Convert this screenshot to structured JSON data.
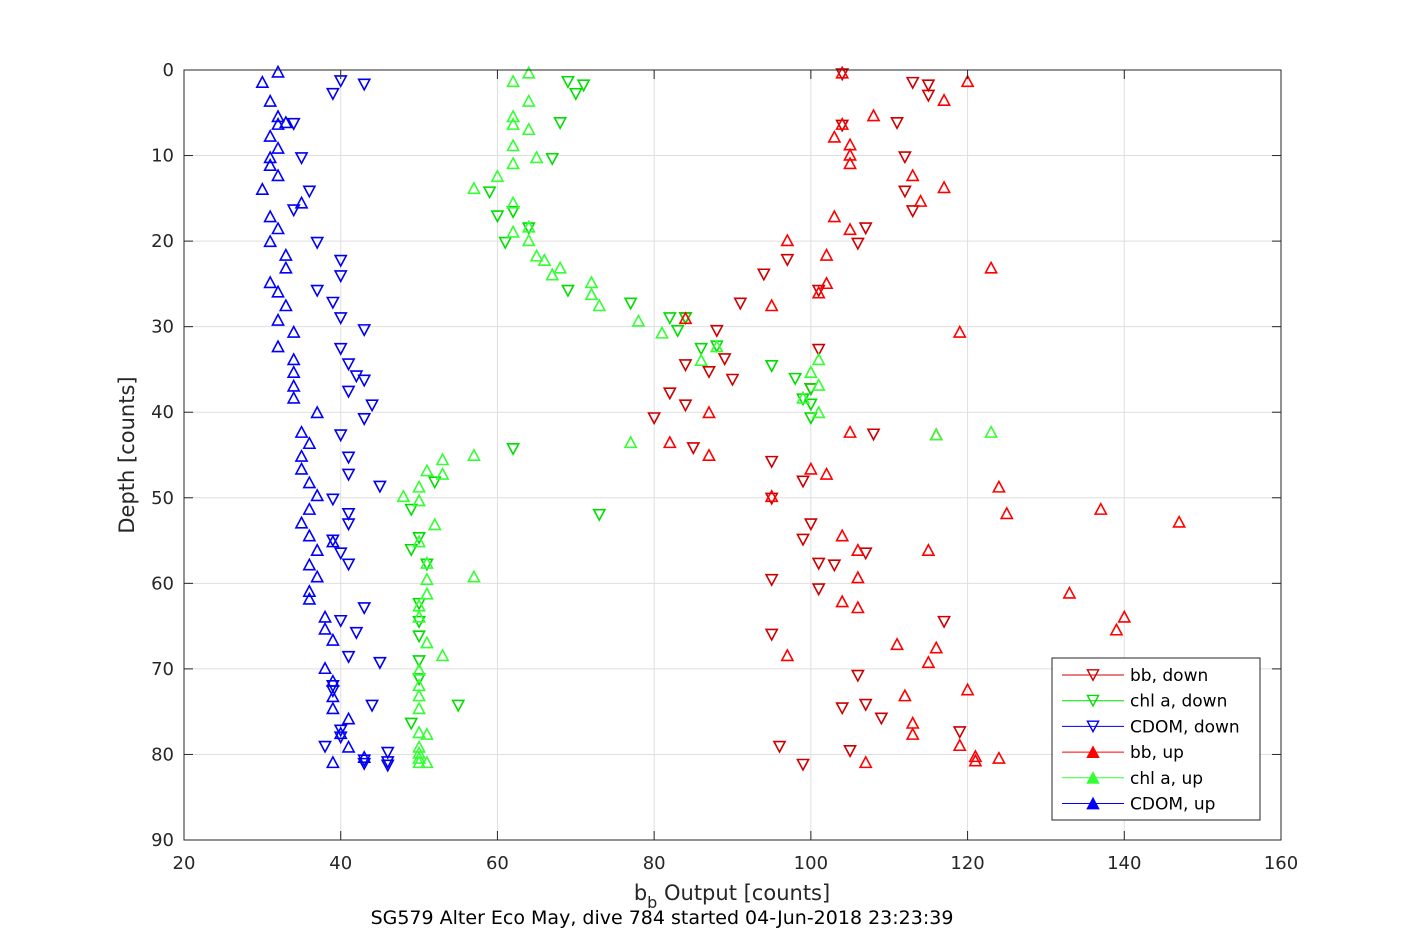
{
  "chart_data": {
    "type": "scatter",
    "xlabel": "b",
    "xlabel_subscript": "b",
    "xlabel_suffix": " Output [counts]",
    "ylabel": "Depth [counts]",
    "title": "SG579 Alter Eco May, dive 784 started 04-Jun-2018 23:23:39",
    "xlim": [
      20,
      160
    ],
    "ylim": [
      0,
      90
    ],
    "y_reversed": true,
    "grid": true,
    "legend_position": "bottom-right",
    "xticks": [
      20,
      40,
      60,
      80,
      100,
      120,
      140,
      160
    ],
    "yticks": [
      0,
      10,
      20,
      30,
      40,
      50,
      60,
      70,
      80,
      90
    ],
    "series": [
      {
        "name": "bb, down",
        "color": "#cc0000",
        "marker": "triangle-down",
        "points": [
          [
            104,
            0.5
          ],
          [
            113,
            1.5
          ],
          [
            115,
            1.8
          ],
          [
            115,
            3
          ],
          [
            111,
            6.2
          ],
          [
            104,
            6.5
          ],
          [
            112,
            10.2
          ],
          [
            112,
            14.2
          ],
          [
            113,
            16.5
          ],
          [
            107,
            18.5
          ],
          [
            106,
            20.3
          ],
          [
            97,
            22.2
          ],
          [
            94,
            23.9
          ],
          [
            101,
            25.8
          ],
          [
            91,
            27.3
          ],
          [
            88,
            30.5
          ],
          [
            84,
            29
          ],
          [
            101,
            32.7
          ],
          [
            84,
            34.5
          ],
          [
            89,
            33.8
          ],
          [
            87,
            35.3
          ],
          [
            90,
            36.2
          ],
          [
            100,
            37.3
          ],
          [
            82,
            37.8
          ],
          [
            84,
            39.2
          ],
          [
            80,
            40.7
          ],
          [
            108,
            42.6
          ],
          [
            85,
            44.2
          ],
          [
            95,
            45.8
          ],
          [
            95,
            50.1
          ],
          [
            99,
            48.1
          ],
          [
            100,
            53.1
          ],
          [
            99,
            54.9
          ],
          [
            101,
            57.7
          ],
          [
            103,
            57.9
          ],
          [
            107,
            56.5
          ],
          [
            95,
            59.6
          ],
          [
            101,
            60.7
          ],
          [
            117,
            64.5
          ],
          [
            95,
            66
          ],
          [
            106,
            70.8
          ],
          [
            104,
            74.6
          ],
          [
            107,
            74.2
          ],
          [
            109,
            75.8
          ],
          [
            119,
            77.4
          ],
          [
            96,
            79.1
          ],
          [
            105,
            79.6
          ],
          [
            99,
            81.2
          ]
        ]
      },
      {
        "name": "chl a, down",
        "color": "#00dd00",
        "marker": "triangle-down",
        "points": [
          [
            69,
            1.4
          ],
          [
            71,
            1.8
          ],
          [
            70,
            2.8
          ],
          [
            68,
            6.2
          ],
          [
            67,
            10.4
          ],
          [
            59,
            14.3
          ],
          [
            60,
            17.1
          ],
          [
            62,
            16.6
          ],
          [
            61,
            20.2
          ],
          [
            64,
            18.5
          ],
          [
            69,
            25.8
          ],
          [
            77,
            27.3
          ],
          [
            82,
            29
          ],
          [
            83,
            30.5
          ],
          [
            86,
            32.6
          ],
          [
            84,
            29
          ],
          [
            88,
            32.3
          ],
          [
            95,
            34.6
          ],
          [
            98,
            36.1
          ],
          [
            99,
            38.5
          ],
          [
            100,
            39.1
          ],
          [
            100,
            40.7
          ],
          [
            100,
            37.3
          ],
          [
            62,
            44.3
          ],
          [
            52,
            48.2
          ],
          [
            49,
            51.4
          ],
          [
            49,
            56.1
          ],
          [
            50,
            54.7
          ],
          [
            51,
            57.8
          ],
          [
            50,
            62.4
          ],
          [
            50,
            64.5
          ],
          [
            50,
            66.2
          ],
          [
            50,
            69.1
          ],
          [
            50,
            71.2
          ],
          [
            55,
            74.3
          ],
          [
            49,
            76.4
          ],
          [
            73,
            52
          ]
        ]
      },
      {
        "name": "CDOM, down",
        "color": "#0000ee",
        "marker": "triangle-down",
        "points": [
          [
            40,
            1.3
          ],
          [
            43,
            1.7
          ],
          [
            39,
            2.8
          ],
          [
            34,
            6.3
          ],
          [
            35,
            10.3
          ],
          [
            36,
            14.2
          ],
          [
            34,
            16.4
          ],
          [
            37,
            20.2
          ],
          [
            40,
            22.3
          ],
          [
            40,
            24.1
          ],
          [
            37,
            25.8
          ],
          [
            39,
            27.2
          ],
          [
            40,
            29
          ],
          [
            43,
            30.4
          ],
          [
            40,
            32.6
          ],
          [
            41,
            34.4
          ],
          [
            42,
            35.8
          ],
          [
            41,
            37.6
          ],
          [
            43,
            36.3
          ],
          [
            44,
            39.2
          ],
          [
            43,
            40.8
          ],
          [
            40,
            42.7
          ],
          [
            41,
            45.3
          ],
          [
            41,
            47.3
          ],
          [
            45,
            48.7
          ],
          [
            39,
            50.2
          ],
          [
            41,
            51.9
          ],
          [
            41,
            53.1
          ],
          [
            39,
            55
          ],
          [
            40,
            56.5
          ],
          [
            41,
            57.8
          ],
          [
            43,
            62.9
          ],
          [
            40,
            64.4
          ],
          [
            42,
            65.8
          ],
          [
            41,
            68.6
          ],
          [
            45,
            69.3
          ],
          [
            39,
            72
          ],
          [
            39,
            72.6
          ],
          [
            44,
            74.3
          ],
          [
            40,
            77.2
          ],
          [
            40,
            78
          ],
          [
            38,
            79.1
          ],
          [
            43,
            80.7
          ],
          [
            46,
            79.8
          ],
          [
            46,
            80.9
          ],
          [
            46,
            81.3
          ],
          [
            43,
            81.1
          ]
        ]
      },
      {
        "name": "bb, up",
        "color": "#ff0000",
        "marker": "triangle-up",
        "points": [
          [
            104,
            0.3
          ],
          [
            120,
            1.3
          ],
          [
            117,
            3.5
          ],
          [
            108,
            5.3
          ],
          [
            104,
            6.3
          ],
          [
            103,
            7.8
          ],
          [
            105,
            8.7
          ],
          [
            105,
            9.9
          ],
          [
            105,
            10.9
          ],
          [
            113,
            12.3
          ],
          [
            117,
            13.7
          ],
          [
            114,
            15.3
          ],
          [
            103,
            17.1
          ],
          [
            105,
            18.6
          ],
          [
            97,
            19.9
          ],
          [
            102,
            21.6
          ],
          [
            123,
            23.1
          ],
          [
            102,
            24.9
          ],
          [
            101,
            26
          ],
          [
            95,
            27.5
          ],
          [
            119,
            30.6
          ],
          [
            84,
            29
          ],
          [
            87,
            40
          ],
          [
            82,
            43.5
          ],
          [
            87,
            45
          ],
          [
            105,
            42.3
          ],
          [
            116,
            42.6
          ],
          [
            100,
            46.6
          ],
          [
            102,
            47.2
          ],
          [
            124,
            48.7
          ],
          [
            95,
            49.8
          ],
          [
            125,
            51.8
          ],
          [
            137,
            51.3
          ],
          [
            147,
            52.8
          ],
          [
            104,
            54.4
          ],
          [
            106,
            56.1
          ],
          [
            115,
            56.1
          ],
          [
            106,
            59.3
          ],
          [
            133,
            61.1
          ],
          [
            104,
            62.1
          ],
          [
            106,
            62.8
          ],
          [
            140,
            63.9
          ],
          [
            139,
            65.4
          ],
          [
            111,
            67.1
          ],
          [
            116,
            67.5
          ],
          [
            115,
            69.2
          ],
          [
            97,
            68.4
          ],
          [
            120,
            72.4
          ],
          [
            112,
            73.1
          ],
          [
            113,
            76.3
          ],
          [
            113,
            77.6
          ],
          [
            119,
            78.9
          ],
          [
            121,
            80.2
          ],
          [
            121,
            80.7
          ],
          [
            124,
            80.4
          ],
          [
            107,
            80.9
          ]
        ]
      },
      {
        "name": "chl a, up",
        "color": "#33ff33",
        "marker": "triangle-up",
        "points": [
          [
            64,
            0.3
          ],
          [
            62,
            1.3
          ],
          [
            64,
            3.6
          ],
          [
            62,
            5.4
          ],
          [
            62,
            6.3
          ],
          [
            64,
            6.9
          ],
          [
            62,
            8.8
          ],
          [
            65,
            10.2
          ],
          [
            62,
            10.9
          ],
          [
            60,
            12.4
          ],
          [
            57,
            13.8
          ],
          [
            62,
            15.5
          ],
          [
            64,
            18.3
          ],
          [
            64,
            19.9
          ],
          [
            62,
            18.9
          ],
          [
            65,
            21.7
          ],
          [
            66,
            22.2
          ],
          [
            68,
            23.1
          ],
          [
            67,
            23.9
          ],
          [
            72,
            24.8
          ],
          [
            72,
            26.2
          ],
          [
            73,
            27.5
          ],
          [
            78,
            29.3
          ],
          [
            81,
            30.7
          ],
          [
            86,
            33.9
          ],
          [
            88,
            32.3
          ],
          [
            100,
            35.3
          ],
          [
            101,
            33.8
          ],
          [
            101,
            36.8
          ],
          [
            101,
            40
          ],
          [
            99,
            38.3
          ],
          [
            77,
            43.5
          ],
          [
            116,
            42.6
          ],
          [
            123,
            42.3
          ],
          [
            53,
            45.5
          ],
          [
            57,
            45
          ],
          [
            51,
            46.8
          ],
          [
            53,
            47.2
          ],
          [
            50,
            48.7
          ],
          [
            50,
            50.3
          ],
          [
            48,
            49.8
          ],
          [
            52,
            53.1
          ],
          [
            50,
            55.1
          ],
          [
            51,
            57.6
          ],
          [
            51,
            59.5
          ],
          [
            57,
            59.2
          ],
          [
            51,
            61.2
          ],
          [
            50,
            62.6
          ],
          [
            50,
            63.9
          ],
          [
            51,
            66.9
          ],
          [
            53,
            68.4
          ],
          [
            50,
            70.1
          ],
          [
            50,
            71.9
          ],
          [
            50,
            73.1
          ],
          [
            50,
            74.6
          ],
          [
            50,
            77.4
          ],
          [
            51,
            77.6
          ],
          [
            50,
            79.1
          ],
          [
            50,
            79.8
          ],
          [
            50,
            80.4
          ],
          [
            50,
            80.9
          ],
          [
            51,
            80.9
          ]
        ]
      },
      {
        "name": "CDOM, up",
        "color": "#0000ff",
        "marker": "triangle-up",
        "points": [
          [
            32,
            0.2
          ],
          [
            30,
            1.4
          ],
          [
            31,
            3.6
          ],
          [
            32,
            5.4
          ],
          [
            32,
            6.3
          ],
          [
            33,
            6.1
          ],
          [
            31,
            7.7
          ],
          [
            32,
            9.1
          ],
          [
            31,
            10.2
          ],
          [
            31,
            11.1
          ],
          [
            32,
            12.3
          ],
          [
            30,
            13.9
          ],
          [
            35,
            15.5
          ],
          [
            31,
            17.1
          ],
          [
            32,
            18.5
          ],
          [
            31,
            20
          ],
          [
            33,
            21.6
          ],
          [
            33,
            23.1
          ],
          [
            31,
            24.8
          ],
          [
            32,
            25.9
          ],
          [
            33,
            27.5
          ],
          [
            32,
            29.2
          ],
          [
            34,
            30.6
          ],
          [
            32,
            32.3
          ],
          [
            34,
            33.8
          ],
          [
            34,
            35.3
          ],
          [
            34,
            36.9
          ],
          [
            34,
            38.3
          ],
          [
            37,
            40
          ],
          [
            35,
            42.3
          ],
          [
            36,
            43.6
          ],
          [
            35,
            45.1
          ],
          [
            35,
            46.6
          ],
          [
            36,
            48.2
          ],
          [
            37,
            49.7
          ],
          [
            36,
            51.3
          ],
          [
            35,
            52.9
          ],
          [
            36,
            54.4
          ],
          [
            39,
            55.1
          ],
          [
            37,
            56.1
          ],
          [
            36,
            57.8
          ],
          [
            37,
            59.2
          ],
          [
            36,
            60.9
          ],
          [
            36,
            61.8
          ],
          [
            38,
            63.9
          ],
          [
            38,
            65.3
          ],
          [
            39,
            66.6
          ],
          [
            38,
            69.9
          ],
          [
            39,
            71.4
          ],
          [
            39,
            73.2
          ],
          [
            39,
            74.6
          ],
          [
            41,
            75.8
          ],
          [
            40,
            77.5
          ],
          [
            41,
            79.1
          ],
          [
            39,
            80.9
          ],
          [
            43,
            80.3
          ]
        ]
      }
    ]
  }
}
